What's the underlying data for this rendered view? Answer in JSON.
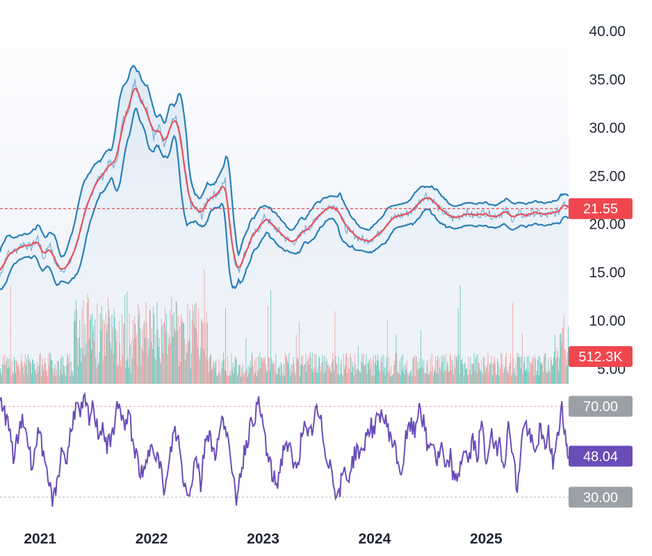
{
  "chart_data": [
    {
      "type": "line",
      "panel": "price",
      "ylim": [
        5,
        40
      ],
      "y_ticks": [
        "40.00",
        "35.00",
        "30.00",
        "25.00",
        "20.00",
        "15.00",
        "10.00",
        "5.00"
      ],
      "y_tick_values": [
        40,
        35,
        30,
        25,
        20,
        15,
        10,
        5
      ],
      "x_ticks": [
        "2021",
        "2022",
        "2023",
        "2024",
        "2025"
      ],
      "x_tick_values": [
        2021,
        2022,
        2023,
        2024,
        2025
      ],
      "xlim": [
        2020.64,
        2025.74
      ],
      "last_price": 21.55,
      "last_price_label": "21.55",
      "last_volume_label": "512.3K",
      "close": [
        [
          2020.64,
          14.5
        ],
        [
          2020.7,
          16.8
        ],
        [
          2020.78,
          17.2
        ],
        [
          2020.85,
          18.0
        ],
        [
          2020.92,
          17.5
        ],
        [
          2020.98,
          18.6
        ],
        [
          2021.03,
          16.3
        ],
        [
          2021.08,
          18.0
        ],
        [
          2021.14,
          15.8
        ],
        [
          2021.2,
          15.2
        ],
        [
          2021.26,
          15.8
        ],
        [
          2021.32,
          17.5
        ],
        [
          2021.38,
          20.3
        ],
        [
          2021.44,
          22.3
        ],
        [
          2021.5,
          24.5
        ],
        [
          2021.56,
          24.9
        ],
        [
          2021.62,
          26.3
        ],
        [
          2021.68,
          26.0
        ],
        [
          2021.74,
          30.5
        ],
        [
          2021.8,
          32.2
        ],
        [
          2021.85,
          35.0
        ],
        [
          2021.9,
          32.8
        ],
        [
          2021.96,
          32.0
        ],
        [
          2022.02,
          29.0
        ],
        [
          2022.07,
          30.0
        ],
        [
          2022.11,
          28.3
        ],
        [
          2022.16,
          29.8
        ],
        [
          2022.21,
          31.2
        ],
        [
          2022.26,
          29.0
        ],
        [
          2022.31,
          24.0
        ],
        [
          2022.35,
          22.0
        ],
        [
          2022.4,
          21.5
        ],
        [
          2022.45,
          20.8
        ],
        [
          2022.5,
          22.5
        ],
        [
          2022.56,
          23.0
        ],
        [
          2022.61,
          23.3
        ],
        [
          2022.66,
          24.5
        ],
        [
          2022.7,
          20.0
        ],
        [
          2022.74,
          16.5
        ],
        [
          2022.78,
          15.0
        ],
        [
          2022.82,
          16.5
        ],
        [
          2022.86,
          17.5
        ],
        [
          2022.9,
          18.5
        ],
        [
          2022.96,
          19.5
        ],
        [
          2023.02,
          20.8
        ],
        [
          2023.08,
          19.8
        ],
        [
          2023.14,
          19.2
        ],
        [
          2023.2,
          18.5
        ],
        [
          2023.26,
          18.0
        ],
        [
          2023.32,
          18.5
        ],
        [
          2023.38,
          19.5
        ],
        [
          2023.44,
          19.8
        ],
        [
          2023.5,
          21.0
        ],
        [
          2023.56,
          21.5
        ],
        [
          2023.62,
          22.0
        ],
        [
          2023.68,
          21.5
        ],
        [
          2023.74,
          19.5
        ],
        [
          2023.8,
          19.0
        ],
        [
          2023.86,
          18.5
        ],
        [
          2023.92,
          18.2
        ],
        [
          2023.98,
          18.5
        ],
        [
          2024.04,
          19.0
        ],
        [
          2024.1,
          20.0
        ],
        [
          2024.16,
          20.5
        ],
        [
          2024.22,
          20.8
        ],
        [
          2024.28,
          21.0
        ],
        [
          2024.34,
          21.3
        ],
        [
          2024.4,
          22.3
        ],
        [
          2024.46,
          23.0
        ],
        [
          2024.52,
          22.5
        ],
        [
          2024.58,
          21.5
        ],
        [
          2024.64,
          21.0
        ],
        [
          2024.7,
          20.5
        ],
        [
          2024.76,
          20.8
        ],
        [
          2024.82,
          21.2
        ],
        [
          2024.88,
          20.8
        ],
        [
          2024.94,
          21.0
        ],
        [
          2025.0,
          21.2
        ],
        [
          2025.06,
          20.8
        ],
        [
          2025.12,
          21.0
        ],
        [
          2025.18,
          21.3
        ],
        [
          2025.24,
          20.5
        ],
        [
          2025.3,
          21.0
        ],
        [
          2025.36,
          20.8
        ],
        [
          2025.42,
          21.2
        ],
        [
          2025.48,
          21.0
        ],
        [
          2025.54,
          20.8
        ],
        [
          2025.6,
          21.0
        ],
        [
          2025.66,
          21.3
        ],
        [
          2025.7,
          22.5
        ],
        [
          2025.74,
          21.55
        ]
      ]
    },
    {
      "type": "bar",
      "panel": "volume",
      "series": [
        {
          "name": "",
          "values": []
        }
      ]
    },
    {
      "type": "line",
      "panel": "rsi",
      "ylim": [
        20,
        80
      ],
      "y_ticks": [
        "70.00",
        "30.00"
      ],
      "y_tick_values": [
        70,
        30
      ],
      "last_value": 48.04,
      "last_value_label": "48.04",
      "rsi": [
        [
          2020.64,
          72
        ],
        [
          2020.68,
          68
        ],
        [
          2020.72,
          60
        ],
        [
          2020.76,
          48
        ],
        [
          2020.8,
          55
        ],
        [
          2020.84,
          65
        ],
        [
          2020.88,
          58
        ],
        [
          2020.92,
          45
        ],
        [
          2020.96,
          52
        ],
        [
          2021.0,
          62
        ],
        [
          2021.04,
          42
        ],
        [
          2021.08,
          35
        ],
        [
          2021.12,
          28
        ],
        [
          2021.16,
          40
        ],
        [
          2021.2,
          52
        ],
        [
          2021.24,
          45
        ],
        [
          2021.28,
          62
        ],
        [
          2021.32,
          70
        ],
        [
          2021.36,
          66
        ],
        [
          2021.4,
          72
        ],
        [
          2021.44,
          64
        ],
        [
          2021.48,
          70
        ],
        [
          2021.52,
          58
        ],
        [
          2021.56,
          62
        ],
        [
          2021.6,
          52
        ],
        [
          2021.64,
          55
        ],
        [
          2021.68,
          68
        ],
        [
          2021.72,
          70
        ],
        [
          2021.76,
          60
        ],
        [
          2021.8,
          66
        ],
        [
          2021.84,
          52
        ],
        [
          2021.88,
          45
        ],
        [
          2021.92,
          38
        ],
        [
          2021.96,
          45
        ],
        [
          2022.0,
          56
        ],
        [
          2022.04,
          50
        ],
        [
          2022.08,
          42
        ],
        [
          2022.12,
          32
        ],
        [
          2022.16,
          45
        ],
        [
          2022.2,
          60
        ],
        [
          2022.24,
          55
        ],
        [
          2022.28,
          40
        ],
        [
          2022.32,
          30
        ],
        [
          2022.36,
          38
        ],
        [
          2022.4,
          50
        ],
        [
          2022.44,
          35
        ],
        [
          2022.48,
          55
        ],
        [
          2022.52,
          60
        ],
        [
          2022.56,
          48
        ],
        [
          2022.6,
          55
        ],
        [
          2022.64,
          65
        ],
        [
          2022.68,
          60
        ],
        [
          2022.72,
          38
        ],
        [
          2022.76,
          30
        ],
        [
          2022.8,
          42
        ],
        [
          2022.84,
          52
        ],
        [
          2022.88,
          60
        ],
        [
          2022.92,
          66
        ],
        [
          2022.96,
          70
        ],
        [
          2023.0,
          62
        ],
        [
          2023.04,
          48
        ],
        [
          2023.08,
          40
        ],
        [
          2023.12,
          35
        ],
        [
          2023.16,
          45
        ],
        [
          2023.2,
          55
        ],
        [
          2023.24,
          50
        ],
        [
          2023.28,
          42
        ],
        [
          2023.32,
          48
        ],
        [
          2023.36,
          62
        ],
        [
          2023.4,
          55
        ],
        [
          2023.44,
          60
        ],
        [
          2023.48,
          68
        ],
        [
          2023.52,
          62
        ],
        [
          2023.56,
          50
        ],
        [
          2023.6,
          45
        ],
        [
          2023.64,
          35
        ],
        [
          2023.68,
          30
        ],
        [
          2023.72,
          42
        ],
        [
          2023.76,
          38
        ],
        [
          2023.8,
          45
        ],
        [
          2023.84,
          52
        ],
        [
          2023.88,
          48
        ],
        [
          2023.92,
          56
        ],
        [
          2023.96,
          62
        ],
        [
          2024.0,
          58
        ],
        [
          2024.04,
          68
        ],
        [
          2024.08,
          65
        ],
        [
          2024.12,
          60
        ],
        [
          2024.16,
          55
        ],
        [
          2024.2,
          48
        ],
        [
          2024.24,
          40
        ],
        [
          2024.28,
          55
        ],
        [
          2024.32,
          62
        ],
        [
          2024.36,
          58
        ],
        [
          2024.4,
          72
        ],
        [
          2024.44,
          62
        ],
        [
          2024.48,
          50
        ],
        [
          2024.52,
          56
        ],
        [
          2024.56,
          45
        ],
        [
          2024.6,
          52
        ],
        [
          2024.64,
          40
        ],
        [
          2024.68,
          48
        ],
        [
          2024.72,
          35
        ],
        [
          2024.76,
          42
        ],
        [
          2024.8,
          52
        ],
        [
          2024.84,
          45
        ],
        [
          2024.88,
          55
        ],
        [
          2024.92,
          48
        ],
        [
          2024.96,
          62
        ],
        [
          2025.0,
          45
        ],
        [
          2025.04,
          58
        ],
        [
          2025.08,
          50
        ],
        [
          2025.12,
          55
        ],
        [
          2025.16,
          45
        ],
        [
          2025.2,
          60
        ],
        [
          2025.24,
          52
        ],
        [
          2025.28,
          30
        ],
        [
          2025.32,
          58
        ],
        [
          2025.36,
          62
        ],
        [
          2025.4,
          55
        ],
        [
          2025.44,
          48
        ],
        [
          2025.48,
          60
        ],
        [
          2025.52,
          52
        ],
        [
          2025.56,
          58
        ],
        [
          2025.6,
          45
        ],
        [
          2025.64,
          55
        ],
        [
          2025.68,
          72
        ],
        [
          2025.72,
          52
        ],
        [
          2025.74,
          48.04
        ]
      ]
    }
  ],
  "colors": {
    "price_line": "#2a7fb6",
    "band_line": "#2a7fb6",
    "ma_line": "#e8505b",
    "area_fill": "#e6eff8",
    "volume_up": "#3cb8a8",
    "volume_down": "#ef8a8a",
    "rsi_line": "#6a4cb8",
    "last_price_tag": "#f0474f",
    "rsi_tag": "#6a4cb8",
    "level_tag": "#9aa0a6",
    "dashed_price": "#e8505b"
  }
}
